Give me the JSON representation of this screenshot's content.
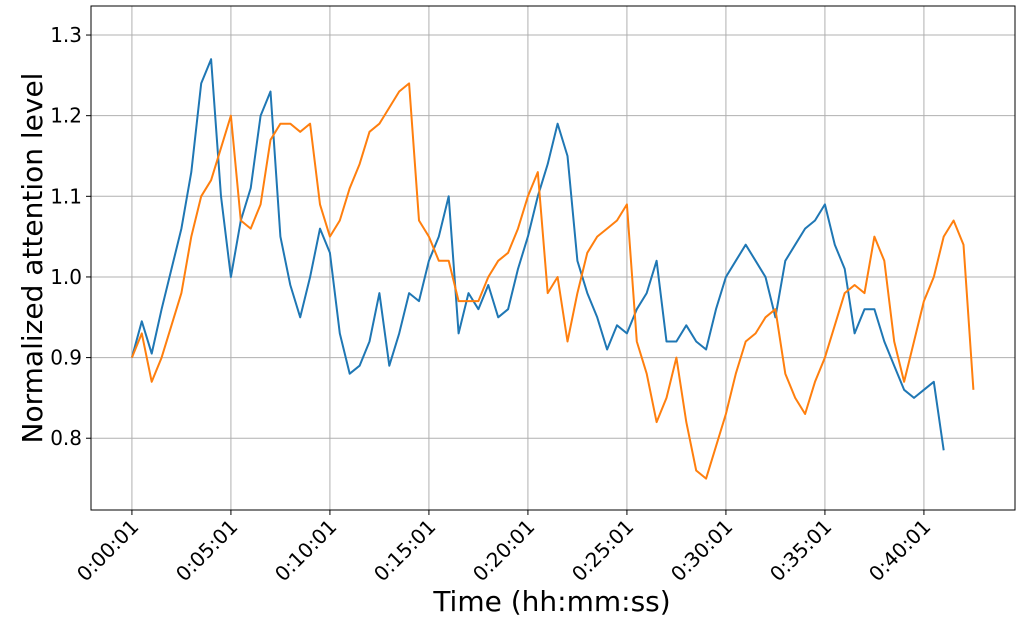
{
  "chart_data": {
    "type": "line",
    "xlabel": "Time (hh:mm:ss)",
    "ylabel": "Normalized attention level",
    "x": [
      1,
      31,
      61,
      91,
      121,
      151,
      181,
      211,
      241,
      271,
      301,
      331,
      361,
      391,
      421,
      451,
      481,
      511,
      541,
      571,
      601,
      631,
      661,
      691,
      721,
      751,
      781,
      811,
      841,
      871,
      901,
      931,
      961,
      991,
      1021,
      1051,
      1081,
      1111,
      1141,
      1171,
      1201,
      1231,
      1261,
      1291,
      1321,
      1351,
      1381,
      1411,
      1441,
      1471,
      1501,
      1531,
      1561,
      1591,
      1621,
      1651,
      1681,
      1711,
      1741,
      1771,
      1801,
      1831,
      1861,
      1891,
      1921,
      1951,
      1981,
      2011,
      2041,
      2071,
      2101,
      2131,
      2161,
      2191,
      2221,
      2251,
      2281,
      2311,
      2341,
      2371,
      2401,
      2431,
      2461,
      2491,
      2521,
      2551
    ],
    "series": [
      {
        "color": "#1f77b4",
        "values": [
          0.9,
          0.945,
          0.905,
          0.96,
          1.01,
          1.06,
          1.13,
          1.24,
          1.27,
          1.1,
          1.0,
          1.07,
          1.11,
          1.2,
          1.23,
          1.05,
          0.99,
          0.95,
          1.0,
          1.06,
          1.03,
          0.93,
          0.88,
          0.89,
          0.92,
          0.98,
          0.89,
          0.93,
          0.98,
          0.97,
          1.02,
          1.05,
          1.1,
          0.93,
          0.98,
          0.96,
          0.99,
          0.95,
          0.96,
          1.01,
          1.05,
          1.1,
          1.14,
          1.19,
          1.15,
          1.02,
          0.98,
          0.95,
          0.91,
          0.94,
          0.93,
          0.96,
          0.98,
          1.02,
          0.92,
          0.92,
          0.94,
          0.92,
          0.91,
          0.96,
          1.0,
          1.02,
          1.04,
          1.02,
          1.0,
          0.95,
          1.02,
          1.04,
          1.06,
          1.07,
          1.09,
          1.04,
          1.01,
          0.93,
          0.96,
          0.96,
          0.92,
          0.89,
          0.86,
          0.85,
          0.86,
          0.87,
          0.785,
          null,
          null,
          null
        ]
      },
      {
        "color": "#ff7f0e",
        "values": [
          0.9,
          0.93,
          0.87,
          0.9,
          0.94,
          0.98,
          1.05,
          1.1,
          1.12,
          1.16,
          1.2,
          1.07,
          1.06,
          1.09,
          1.17,
          1.19,
          1.19,
          1.18,
          1.19,
          1.09,
          1.05,
          1.07,
          1.11,
          1.14,
          1.18,
          1.19,
          1.21,
          1.23,
          1.24,
          1.07,
          1.05,
          1.02,
          1.02,
          0.97,
          0.97,
          0.97,
          1.0,
          1.02,
          1.03,
          1.06,
          1.1,
          1.13,
          0.98,
          1.0,
          0.92,
          0.98,
          1.03,
          1.05,
          1.06,
          1.07,
          1.09,
          0.92,
          0.88,
          0.82,
          0.85,
          0.9,
          0.82,
          0.76,
          0.75,
          0.79,
          0.83,
          0.88,
          0.92,
          0.93,
          0.95,
          0.96,
          0.88,
          0.85,
          0.83,
          0.87,
          0.9,
          0.94,
          0.98,
          0.99,
          0.98,
          1.05,
          1.02,
          0.92,
          0.87,
          0.92,
          0.97,
          1.0,
          1.05,
          1.07,
          1.04,
          0.86
        ]
      }
    ],
    "xlim": [
      -123,
      2677
    ],
    "xticks": [
      {
        "value": 1,
        "label": "0:00:01"
      },
      {
        "value": 301,
        "label": "0:05:01"
      },
      {
        "value": 601,
        "label": "0:10:01"
      },
      {
        "value": 901,
        "label": "0:15:01"
      },
      {
        "value": 1201,
        "label": "0:20:01"
      },
      {
        "value": 1501,
        "label": "0:25:01"
      },
      {
        "value": 1801,
        "label": "0:30:01"
      },
      {
        "value": 2101,
        "label": "0:35:01"
      },
      {
        "value": 2401,
        "label": "0:40:01"
      }
    ],
    "ylim": [
      0.711,
      1.336
    ],
    "yticks": [
      {
        "value": 0.8,
        "label": "0.8"
      },
      {
        "value": 0.9,
        "label": "0.9"
      },
      {
        "value": 1.0,
        "label": "1.0"
      },
      {
        "value": 1.1,
        "label": "1.1"
      },
      {
        "value": 1.2,
        "label": "1.2"
      },
      {
        "value": 1.3,
        "label": "1.3"
      }
    ],
    "grid": true
  }
}
